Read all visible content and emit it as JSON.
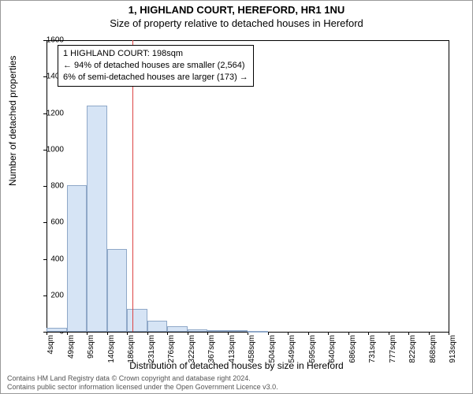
{
  "title_line1": "1, HIGHLAND COURT, HEREFORD, HR1 1NU",
  "title_line2": "Size of property relative to detached houses in Hereford",
  "y_axis_label": "Number of detached properties",
  "x_axis_label": "Distribution of detached houses by size in Hereford",
  "footer_line1": "Contains HM Land Registry data © Crown copyright and database right 2024.",
  "footer_line2": "Contains public sector information licensed under the Open Government Licence v3.0.",
  "info_box": {
    "line1": "1 HIGHLAND COURT: 198sqm",
    "line2": "← 94% of detached houses are smaller (2,564)",
    "line3": "6% of semi-detached houses are larger (173) →"
  },
  "chart": {
    "type": "histogram",
    "ylim": [
      0,
      1600
    ],
    "ytick_step": 200,
    "y_ticks": [
      0,
      200,
      400,
      600,
      800,
      1000,
      1200,
      1400,
      1600
    ],
    "x_tick_labels": [
      "4sqm",
      "49sqm",
      "95sqm",
      "140sqm",
      "186sqm",
      "231sqm",
      "276sqm",
      "322sqm",
      "367sqm",
      "413sqm",
      "458sqm",
      "504sqm",
      "549sqm",
      "595sqm",
      "640sqm",
      "686sqm",
      "731sqm",
      "777sqm",
      "822sqm",
      "868sqm",
      "913sqm"
    ],
    "bar_values": [
      20,
      805,
      1240,
      455,
      125,
      60,
      30,
      15,
      10,
      8,
      5,
      0,
      0,
      0,
      0,
      0,
      0,
      0,
      0,
      0
    ],
    "bar_fill": "#d6e4f5",
    "bar_stroke": "#8fa8c8",
    "ref_line_color": "#d44",
    "ref_value_sqm": 198,
    "x_min_sqm": 4,
    "x_max_sqm": 913,
    "background_color": "#ffffff",
    "axis_color": "#000000",
    "title_fontsize": 13,
    "label_fontsize": 12,
    "tick_fontsize": 10
  }
}
